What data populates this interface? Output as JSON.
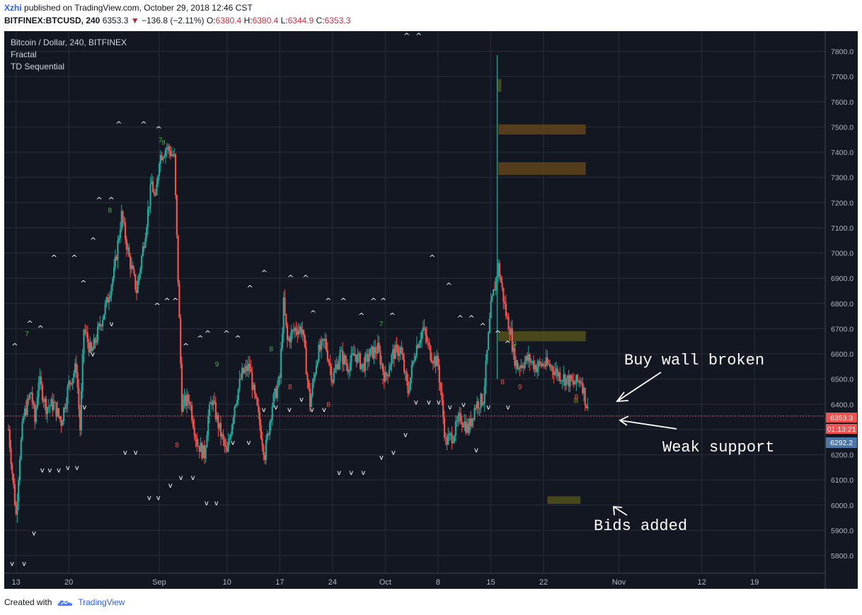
{
  "header": {
    "user": "Xzhi",
    "published_text": "published on TradingView.com, October 29, 2018 12:46 CST",
    "symbol": "BITFINEX:BTCUSD, 240",
    "last": "6353.3",
    "change": "−136.8 (−2.11%)",
    "open_label": "O:",
    "open": "6380.4",
    "high_label": "H:",
    "high": "6380.4",
    "low_label": "L:",
    "low": "6344.9",
    "close_label": "C:",
    "close": "6353.3"
  },
  "legend": {
    "title": "Bitcoin / Dollar, 240, BITFINEX",
    "indicator1": "Fractal",
    "indicator2": "TD Sequential"
  },
  "colors": {
    "background": "#131722",
    "up": "#26a69a",
    "down": "#ef5350",
    "grid": "#2a2e39",
    "zone_brown": "#6b4a1c",
    "zone_olive": "#5c5a1c",
    "price_badge": "#ef5350",
    "ref_badge": "#4a76a8"
  },
  "price_axis": {
    "ticks": [
      "7800.0",
      "7700.0",
      "7600.0",
      "7500.0",
      "7400.0",
      "7300.0",
      "7200.0",
      "7100.0",
      "7000.0",
      "6900.0",
      "6800.0",
      "6700.0",
      "6600.0",
      "6500.0",
      "6400.0",
      "6300.0",
      "6200.0",
      "6100.0",
      "6000.0",
      "5900.0",
      "5800.0"
    ],
    "current_price": "6353.3",
    "countdown": "01:13:21",
    "reference_price": "6292.2"
  },
  "time_axis": {
    "ticks": [
      "13",
      "20",
      "Sep",
      "10",
      "17",
      "24",
      "Oct",
      "8",
      "15",
      "22",
      "Nov",
      "12",
      "19"
    ]
  },
  "annotations": {
    "buy_wall": "Buy wall broken",
    "weak_support": "Weak support",
    "bids_added": "Bids added"
  },
  "chart_data": {
    "type": "candlestick",
    "title": "Bitcoin / Dollar, 240, BITFINEX",
    "timeframe": "240",
    "ylim": [
      5730,
      7880
    ],
    "x_range_days": [
      "Aug 12, 2018",
      "Nov 28, 2018"
    ],
    "close_path_days_since_aug12": [
      0,
      1,
      1.5,
      2,
      3,
      3.5,
      4,
      5,
      6,
      7,
      8,
      9,
      9.5,
      10,
      11,
      12,
      13,
      14,
      15,
      16,
      17,
      18,
      19,
      19.5,
      20,
      21,
      22,
      22.5,
      23,
      24,
      25,
      26,
      26.5,
      27,
      28,
      29,
      30,
      31,
      32,
      32.5,
      33,
      34,
      35,
      36,
      36.5,
      37,
      38,
      39,
      40,
      41,
      42,
      43,
      44,
      45,
      46,
      47,
      48,
      49,
      50,
      51,
      52,
      53,
      54,
      55,
      56,
      57,
      58,
      59,
      60,
      61,
      62,
      63,
      64,
      65,
      66,
      66.3,
      66.6,
      67,
      67.5,
      68,
      69,
      70,
      71,
      72,
      73,
      74,
      75,
      76,
      77,
      78,
      78.5
    ],
    "close_path_prices": [
      6300,
      5960,
      6200,
      6350,
      6450,
      6330,
      6500,
      6390,
      6400,
      6330,
      6480,
      6550,
      6300,
      6700,
      6600,
      6700,
      6800,
      6920,
      7150,
      6980,
      6850,
      7050,
      7280,
      7200,
      7380,
      7420,
      7380,
      6900,
      6400,
      6420,
      6250,
      6200,
      6350,
      6420,
      6300,
      6200,
      6400,
      6520,
      6550,
      6450,
      6380,
      6200,
      6400,
      6500,
      6800,
      6650,
      6700,
      6700,
      6400,
      6600,
      6650,
      6500,
      6600,
      6550,
      6600,
      6550,
      6600,
      6620,
      6500,
      6600,
      6620,
      6450,
      6620,
      6700,
      6600,
      6560,
      6250,
      6280,
      6350,
      6300,
      6400,
      6420,
      6780,
      6950,
      6760,
      6720,
      6700,
      6600,
      6550,
      6560,
      6580,
      6550,
      6560,
      6550,
      6520,
      6500,
      6480,
      6500,
      6353
    ],
    "current_price": 6353.3,
    "reference_price": 6292.2,
    "zones": [
      {
        "start_day": 64.8,
        "end_day": 65.4,
        "low": 7640,
        "high": 7690
      },
      {
        "start_day": 65.0,
        "end_day": 76.6,
        "low": 7470,
        "high": 7510
      },
      {
        "start_day": 65.0,
        "end_day": 76.6,
        "low": 7310,
        "high": 7360
      },
      {
        "start_day": 65.0,
        "end_day": 76.6,
        "low": 6650,
        "high": 6690
      },
      {
        "start_day": 71.5,
        "end_day": 75.9,
        "low": 6005,
        "high": 6035
      },
      {
        "start_day": 75.0,
        "end_day": 75.6,
        "low": 6405,
        "high": 6425
      }
    ],
    "spike": {
      "day": 64.85,
      "high": 7785,
      "low": 6500
    },
    "fractal_up_marks": [
      {
        "day": 0.4,
        "price": 6620
      },
      {
        "day": 2.4,
        "price": 6710
      },
      {
        "day": 3.8,
        "price": 6690
      },
      {
        "day": 5.6,
        "price": 6970
      },
      {
        "day": 8.3,
        "price": 6970
      },
      {
        "day": 9.5,
        "price": 6870
      },
      {
        "day": 10.8,
        "price": 7040
      },
      {
        "day": 11.6,
        "price": 7200
      },
      {
        "day": 13.2,
        "price": 7200
      },
      {
        "day": 14.2,
        "price": 7500
      },
      {
        "day": 17.5,
        "price": 7500
      },
      {
        "day": 19.5,
        "price": 7480
      },
      {
        "day": 19.3,
        "price": 6780
      },
      {
        "day": 20.6,
        "price": 6800
      },
      {
        "day": 21.7,
        "price": 6800
      },
      {
        "day": 23.1,
        "price": 6620
      },
      {
        "day": 25.0,
        "price": 6650
      },
      {
        "day": 26.0,
        "price": 6670
      },
      {
        "day": 28.5,
        "price": 6670
      },
      {
        "day": 30.0,
        "price": 6650
      },
      {
        "day": 31.6,
        "price": 6850
      },
      {
        "day": 33.5,
        "price": 6910
      },
      {
        "day": 37.0,
        "price": 6890
      },
      {
        "day": 39.0,
        "price": 6890
      },
      {
        "day": 40.0,
        "price": 6750
      },
      {
        "day": 42.0,
        "price": 6800
      },
      {
        "day": 44.0,
        "price": 6800
      },
      {
        "day": 46.4,
        "price": 6740
      },
      {
        "day": 48.0,
        "price": 6800
      },
      {
        "day": 49.3,
        "price": 6800
      },
      {
        "day": 50.5,
        "price": 6740
      },
      {
        "day": 52.4,
        "price": 7850
      },
      {
        "day": 54.0,
        "price": 7850
      },
      {
        "day": 55.8,
        "price": 6970
      },
      {
        "day": 58.0,
        "price": 6860
      },
      {
        "day": 59.5,
        "price": 6730
      },
      {
        "day": 61.0,
        "price": 6730
      },
      {
        "day": 62.5,
        "price": 6700
      },
      {
        "day": 64.5,
        "price": 6670
      },
      {
        "day": 65.8,
        "price": 6630
      }
    ],
    "fractal_down_marks": [
      {
        "day": 0.2,
        "price": 5760
      },
      {
        "day": 1.8,
        "price": 5760
      },
      {
        "day": 3.1,
        "price": 5880
      },
      {
        "day": 4.2,
        "price": 6130
      },
      {
        "day": 5.2,
        "price": 6130
      },
      {
        "day": 6.4,
        "price": 6130
      },
      {
        "day": 7.6,
        "price": 6140
      },
      {
        "day": 8.8,
        "price": 6140
      },
      {
        "day": 9.8,
        "price": 6380
      },
      {
        "day": 10.9,
        "price": 6590
      },
      {
        "day": 13.4,
        "price": 6710
      },
      {
        "day": 15.2,
        "price": 6200
      },
      {
        "day": 16.6,
        "price": 6200
      },
      {
        "day": 18.4,
        "price": 6020
      },
      {
        "day": 19.6,
        "price": 6020
      },
      {
        "day": 21.2,
        "price": 6070
      },
      {
        "day": 22.6,
        "price": 6100
      },
      {
        "day": 24.2,
        "price": 6100
      },
      {
        "day": 26.0,
        "price": 6000
      },
      {
        "day": 27.3,
        "price": 6000
      },
      {
        "day": 29.5,
        "price": 6240
      },
      {
        "day": 31.6,
        "price": 6240
      },
      {
        "day": 33.6,
        "price": 6370
      },
      {
        "day": 35.2,
        "price": 6380
      },
      {
        "day": 37.0,
        "price": 6370
      },
      {
        "day": 38.6,
        "price": 6410
      },
      {
        "day": 40.0,
        "price": 6370
      },
      {
        "day": 41.6,
        "price": 6370
      },
      {
        "day": 43.6,
        "price": 6120
      },
      {
        "day": 45.2,
        "price": 6120
      },
      {
        "day": 46.8,
        "price": 6120
      },
      {
        "day": 49.2,
        "price": 6180
      },
      {
        "day": 50.8,
        "price": 6200
      },
      {
        "day": 52.4,
        "price": 6270
      },
      {
        "day": 53.8,
        "price": 6400
      },
      {
        "day": 55.5,
        "price": 6400
      },
      {
        "day": 56.8,
        "price": 6400
      },
      {
        "day": 58.3,
        "price": 6380
      },
      {
        "day": 60.1,
        "price": 6390
      },
      {
        "day": 61.8,
        "price": 6210
      },
      {
        "day": 63.4,
        "price": 6380
      },
      {
        "day": 66.0,
        "price": 6380
      }
    ],
    "td_marks": [
      {
        "day": 2.2,
        "price": 6670,
        "label": "7",
        "color": "up"
      },
      {
        "day": 13.2,
        "price": 7160,
        "label": "8",
        "color": "up"
      },
      {
        "day": 20.3,
        "price": 7430,
        "label": "9",
        "color": "up"
      },
      {
        "day": 19.9,
        "price": 7440,
        "label": "7",
        "color": "up"
      },
      {
        "day": 22.1,
        "price": 6230,
        "label": "8",
        "color": "down"
      },
      {
        "day": 27.4,
        "price": 6550,
        "label": "9",
        "color": "up"
      },
      {
        "day": 25.5,
        "price": 6180,
        "label": "7",
        "color": "down"
      },
      {
        "day": 34.6,
        "price": 6610,
        "label": "8",
        "color": "up"
      },
      {
        "day": 37.1,
        "price": 6460,
        "label": "8",
        "color": "down"
      },
      {
        "day": 42.2,
        "price": 6390,
        "label": "8",
        "color": "down"
      },
      {
        "day": 49.4,
        "price": 6480,
        "label": "7",
        "color": "down"
      },
      {
        "day": 49.2,
        "price": 6710,
        "label": "7",
        "color": "up"
      },
      {
        "day": 65.3,
        "price": 6480,
        "label": "8",
        "color": "down"
      },
      {
        "day": 67.6,
        "price": 6460,
        "label": "9",
        "color": "down"
      },
      {
        "day": 66.9,
        "price": 6630,
        "label": "9",
        "color": "up"
      },
      {
        "day": 75.1,
        "price": 6420,
        "label": "8",
        "color": "down"
      }
    ]
  }
}
